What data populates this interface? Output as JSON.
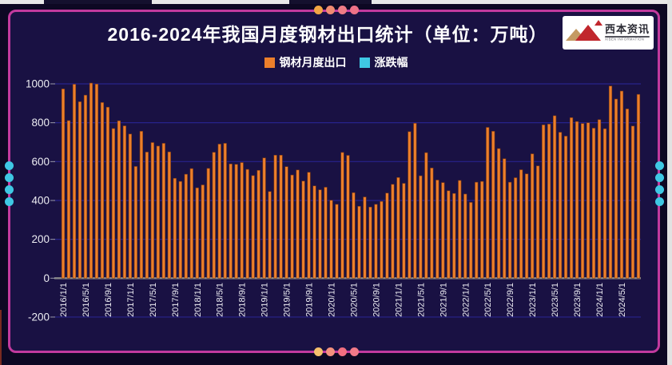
{
  "header": {
    "title": "2016-2024年我国月度钢材出口统计（单位：万吨）"
  },
  "logo": {
    "title": "西本资讯",
    "subtitle": "XIBEN INFORMATION"
  },
  "legend": [
    {
      "label": "钢材月度出口",
      "color": "#ec7f2b"
    },
    {
      "label": "涨跌幅",
      "color": "#3fc8e4"
    }
  ],
  "chart_data": {
    "type": "bar",
    "title": "2016-2024年我国月度钢材出口统计（单位：万吨）",
    "unit": "万吨",
    "x_first_month": "2016/1",
    "x_last_month": "2024/8",
    "x_tick_labels": [
      "2016/1/1",
      "2016/5/1",
      "2016/9/1",
      "2017/1/1",
      "2017/5/1",
      "2017/9/1",
      "2018/1/1",
      "2018/5/1",
      "2018/9/1",
      "2019/1/1",
      "2019/5/1",
      "2019/9/1",
      "2020/1/1",
      "2020/5/1",
      "2020/9/1",
      "2021/1/1",
      "2021/5/1",
      "2021/9/1",
      "2022/1/1",
      "2022/5/1",
      "2022/9/1",
      "2023/1/1",
      "2023/5/1",
      "2023/9/1",
      "2024/1/1",
      "2024/5/1"
    ],
    "x_tick_every": 4,
    "y_ticks": [
      1000,
      800,
      600,
      400,
      200,
      0,
      -200
    ],
    "ylim": [
      -200,
      1080
    ],
    "grid": true,
    "legend_position": "top",
    "series": [
      {
        "name": "钢材月度出口",
        "color": "#ec7f2b",
        "values": [
          974,
          811,
          998,
          908,
          942,
          1004,
          999,
          904,
          880,
          770,
          810,
          784,
          742,
          575,
          756,
          649,
          698,
          680,
          694,
          650,
          514,
          498,
          535,
          564,
          465,
          480,
          565,
          648,
          690,
          694,
          588,
          586,
          595,
          560,
          528,
          555,
          619,
          446,
          633,
          633,
          574,
          531,
          557,
          500,
          545,
          475,
          455,
          468,
          401,
          380,
          647,
          632,
          440,
          370,
          418,
          366,
          380,
          395,
          438,
          483,
          518,
          488,
          754,
          797,
          527,
          646,
          567,
          505,
          492,
          450,
          436,
          503,
          433,
          390,
          494,
          498,
          776,
          756,
          667,
          615,
          494,
          517,
          558,
          537,
          640,
          578,
          789,
          793,
          836,
          751,
          731,
          826,
          806,
          796,
          800,
          772,
          816,
          769,
          989,
          922,
          963,
          871,
          783,
          946
        ]
      },
      {
        "name": "涨跌幅",
        "color": "#3fc8e4",
        "values": []
      }
    ],
    "colors": {
      "grid": "#3432c8",
      "zero_axis": "#8a8a8a",
      "tick_text": "#ececf2",
      "bar_stroke": "#7e3a12",
      "background": "#191143",
      "frame_border": "#c23a9e"
    }
  },
  "decorations": {
    "top_dots": [
      "#f2a644",
      "#f08b72",
      "#ef7c86",
      "#ee7287"
    ],
    "bottom_dots": [
      "#f6c06b",
      "#f4917e",
      "#f26f80",
      "#f27a88"
    ],
    "left_dots": [
      "#3fc8e4",
      "#3fc8e4",
      "#3fc8e4",
      "#3fc8e4"
    ],
    "right_dots": [
      "#3fc8e4",
      "#3fc8e4",
      "#3fc8e4",
      "#3fc8e4"
    ]
  }
}
